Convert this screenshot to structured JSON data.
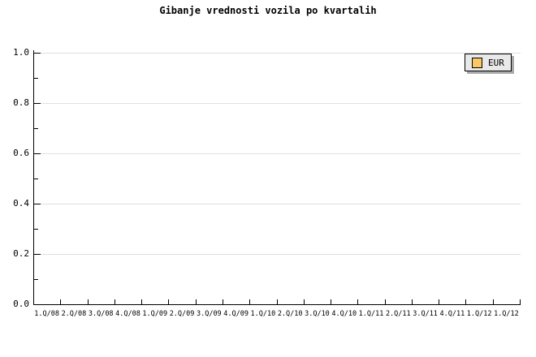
{
  "chart_data": {
    "type": "line",
    "title": "Gibanje vrednosti vozila po kvartalih",
    "xlabel": "",
    "ylabel": "",
    "categories": [
      "1.Q/08",
      "2.Q/08",
      "3.Q/08",
      "4.Q/08",
      "1.Q/09",
      "2.Q/09",
      "3.Q/09",
      "4.Q/09",
      "1.Q/10",
      "2.Q/10",
      "3.Q/10",
      "4.Q/10",
      "1.Q/11",
      "2.Q/11",
      "3.Q/11",
      "4.Q/11",
      "1.Q/12",
      "1.Q/12"
    ],
    "series": [
      {
        "name": "EUR",
        "color": "#fbc867",
        "values": []
      }
    ],
    "ylim": [
      0.0,
      1.0
    ],
    "ytick_labels": [
      "0.0",
      "0.2",
      "0.4",
      "0.6",
      "0.8",
      "1.0"
    ],
    "ytick_major_step": 0.2,
    "ytick_minor_step": 0.1,
    "grid": "horizontal-major",
    "legend_position": "top-right"
  },
  "colors": {
    "background": "#ffffff",
    "axis": "#000000",
    "grid": "#e0e0e0",
    "text": "#000000",
    "legend_background": "#e9e9e9",
    "legend_shadow": "#aaaaaa",
    "legend_swatch": "#fbc867"
  }
}
